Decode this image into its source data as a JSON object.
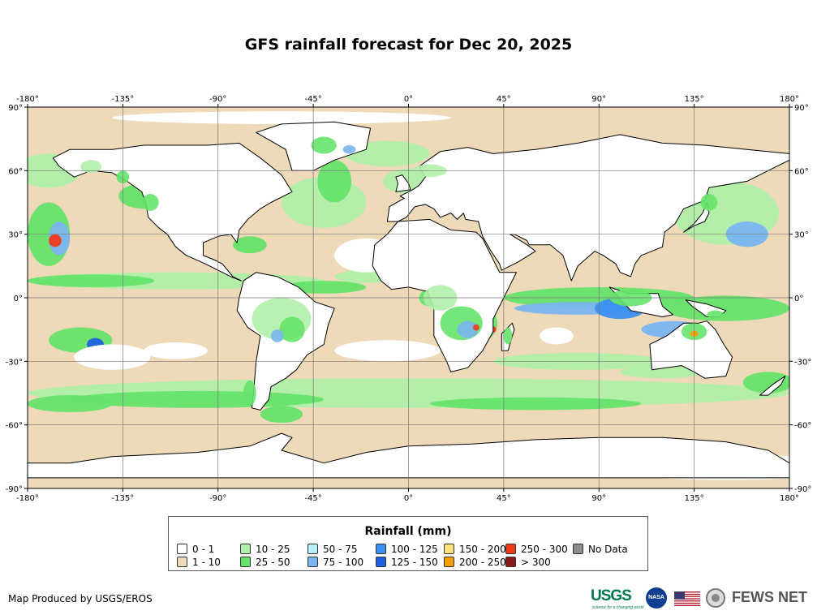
{
  "title": "GFS rainfall forecast for Dec 20, 2025",
  "map": {
    "lon_ticks": [
      "-180°",
      "-135°",
      "-90°",
      "-45°",
      "0°",
      "45°",
      "90°",
      "135°",
      "180°"
    ],
    "lat_ticks": [
      "90°",
      "60°",
      "30°",
      "0°",
      "-30°",
      "-60°",
      "-90°"
    ],
    "lon_range": [
      -180,
      180
    ],
    "lat_range": [
      -90,
      90
    ],
    "grid": true,
    "colors": {
      "ocean_base": "#eed9b9",
      "land": "#ffffff"
    }
  },
  "legend": {
    "title": "Rainfall (mm)",
    "classes": [
      {
        "label": "0 - 1",
        "color": "#ffffff"
      },
      {
        "label": "1 - 10",
        "color": "#eed9b9"
      },
      {
        "label": "10 - 25",
        "color": "#b0f0a8"
      },
      {
        "label": "25 - 50",
        "color": "#66e36a"
      },
      {
        "label": "50 - 75",
        "color": "#b6f0fa"
      },
      {
        "label": "75 - 100",
        "color": "#7ab5f0"
      },
      {
        "label": "100 - 125",
        "color": "#3b8ff0"
      },
      {
        "label": "125 - 150",
        "color": "#2060e0"
      },
      {
        "label": "150 - 200",
        "color": "#fbe27a"
      },
      {
        "label": "200 - 250",
        "color": "#f5a000"
      },
      {
        "label": "250 - 300",
        "color": "#ee3a1a"
      },
      {
        "label": "> 300",
        "color": "#8a1a1a"
      },
      {
        "label": "No Data",
        "color": "#8c8c8c"
      }
    ]
  },
  "credit": "Map Produced by USGS/EROS",
  "logos": {
    "usgs": "USGS",
    "usgs_tagline": "science for a changing world",
    "nasa": "NASA",
    "fews": "FEWS NET"
  }
}
